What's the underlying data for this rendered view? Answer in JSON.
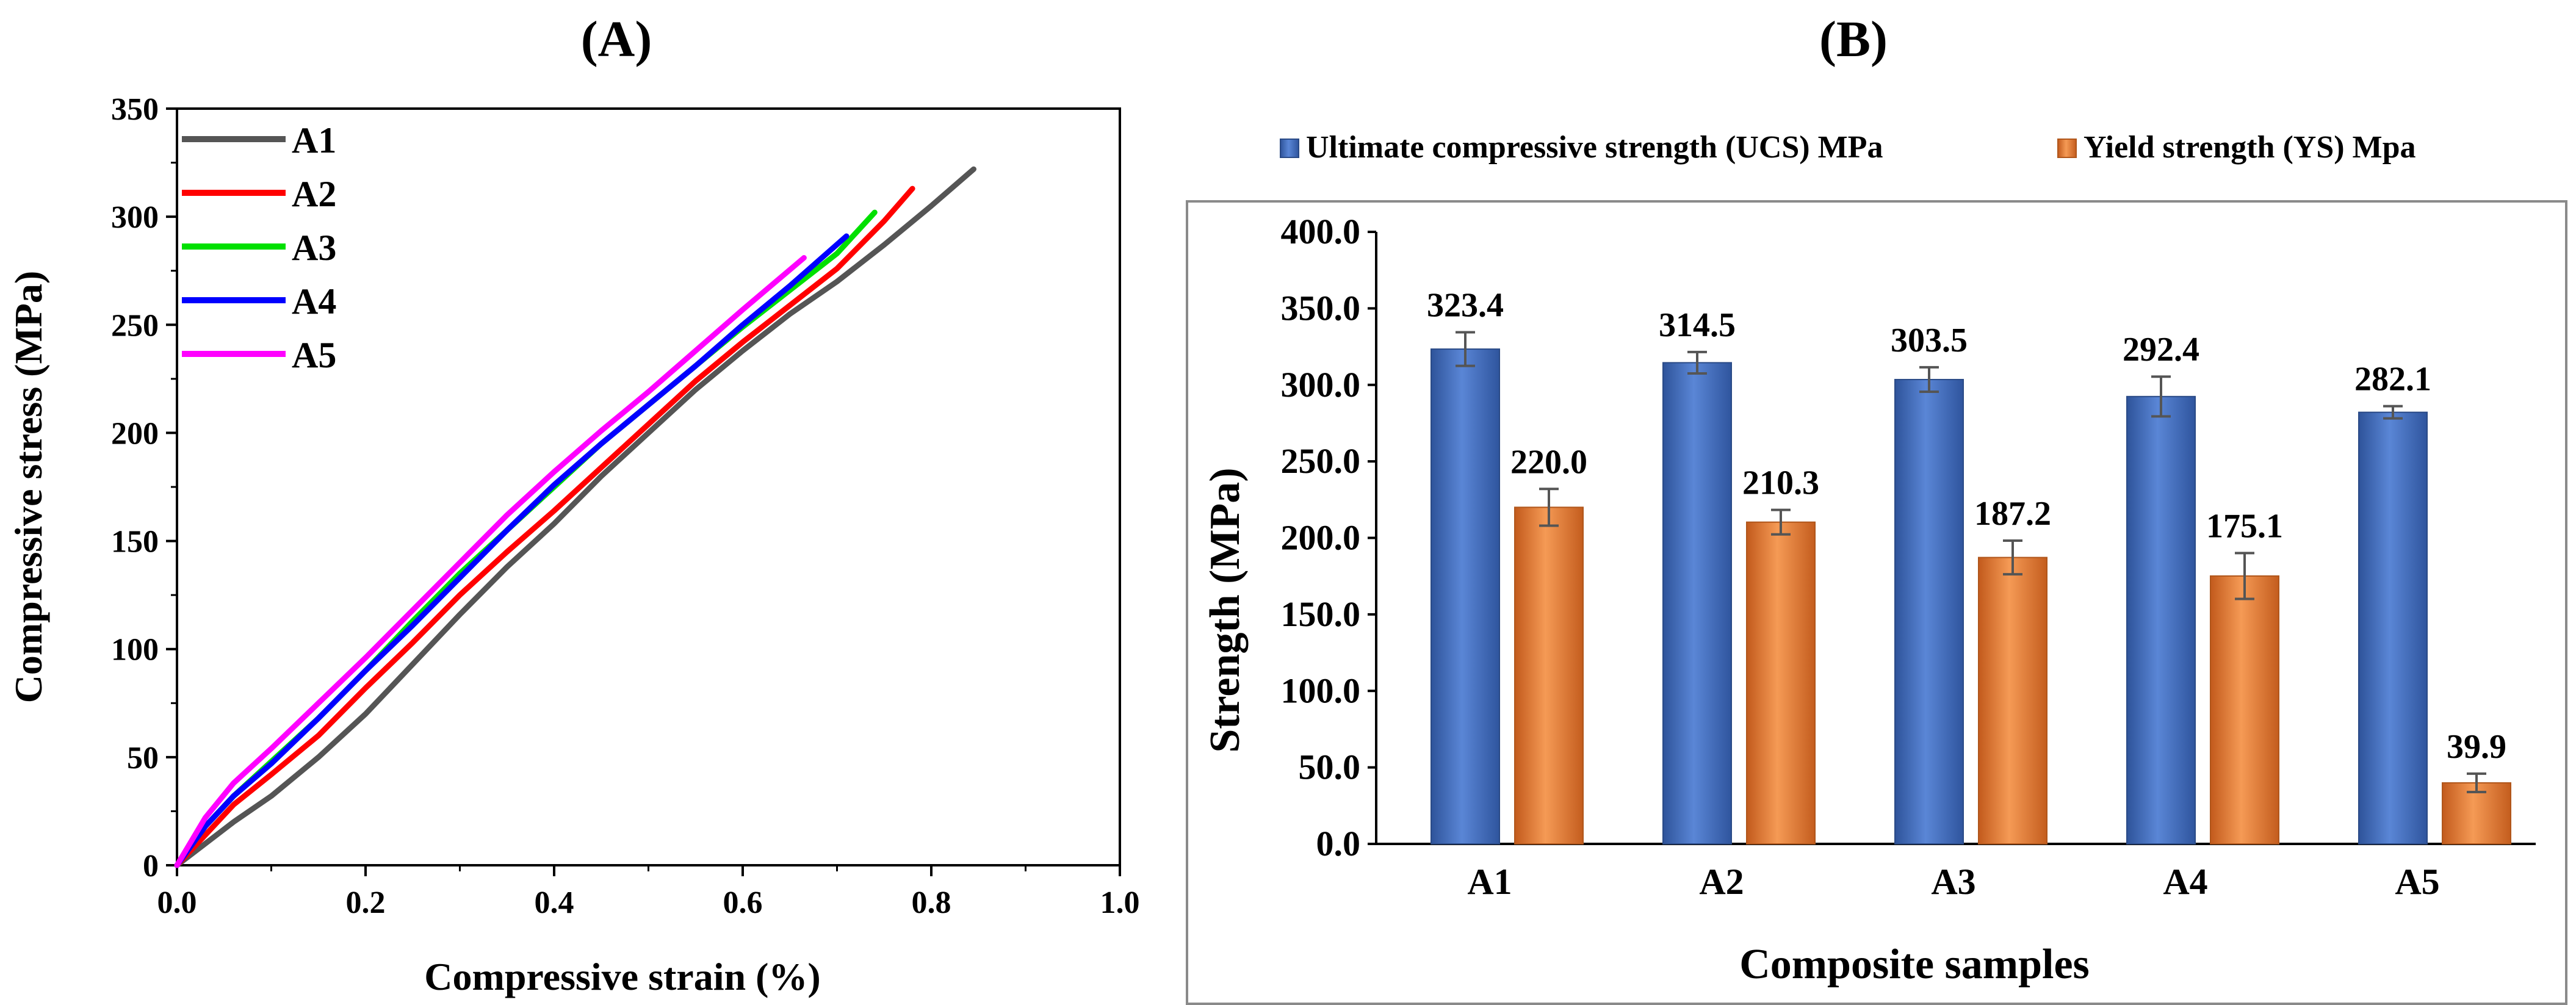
{
  "panels": {
    "a": {
      "label": "(A)"
    },
    "b": {
      "label": "(B)"
    }
  },
  "chart_data": [
    {
      "panel": "(A)",
      "type": "line",
      "title": "",
      "xlabel": "Compressive strain (%)",
      "ylabel": "Compressive stress (MPa)",
      "xlim": [
        0,
        1.0
      ],
      "ylim": [
        0,
        350
      ],
      "xticks": [
        "0.0",
        "0.2",
        "0.4",
        "0.6",
        "0.8",
        "1.0"
      ],
      "yticks": [
        "0",
        "50",
        "100",
        "150",
        "200",
        "250",
        "300",
        "350"
      ],
      "legend_position": "top-left",
      "series": [
        {
          "name": "A1",
          "color": "#555555",
          "x": [
            0,
            0.03,
            0.06,
            0.1,
            0.15,
            0.2,
            0.25,
            0.3,
            0.35,
            0.4,
            0.45,
            0.5,
            0.55,
            0.6,
            0.65,
            0.7,
            0.75,
            0.8,
            0.845
          ],
          "y": [
            0,
            10,
            20,
            32,
            50,
            70,
            93,
            116,
            138,
            158,
            180,
            200,
            220,
            238,
            255,
            270,
            287,
            305,
            322
          ]
        },
        {
          "name": "A2",
          "color": "#ff0000",
          "x": [
            0,
            0.03,
            0.06,
            0.1,
            0.15,
            0.2,
            0.25,
            0.3,
            0.35,
            0.4,
            0.45,
            0.5,
            0.55,
            0.6,
            0.65,
            0.7,
            0.75,
            0.78
          ],
          "y": [
            0,
            14,
            28,
            42,
            60,
            82,
            103,
            125,
            145,
            164,
            184,
            204,
            224,
            242,
            259,
            276,
            298,
            313
          ]
        },
        {
          "name": "A3",
          "color": "#00e000",
          "x": [
            0,
            0.03,
            0.06,
            0.1,
            0.15,
            0.2,
            0.25,
            0.3,
            0.35,
            0.4,
            0.45,
            0.5,
            0.55,
            0.6,
            0.65,
            0.7,
            0.74
          ],
          "y": [
            0,
            18,
            32,
            48,
            68,
            90,
            113,
            135,
            155,
            175,
            195,
            213,
            231,
            249,
            266,
            283,
            302
          ]
        },
        {
          "name": "A4",
          "color": "#0000ff",
          "x": [
            0,
            0.03,
            0.06,
            0.1,
            0.15,
            0.2,
            0.25,
            0.3,
            0.35,
            0.4,
            0.45,
            0.5,
            0.55,
            0.6,
            0.65,
            0.71
          ],
          "y": [
            0,
            18,
            32,
            47,
            68,
            90,
            111,
            133,
            155,
            176,
            195,
            213,
            231,
            250,
            268,
            291
          ]
        },
        {
          "name": "A5",
          "color": "#ff00ff",
          "x": [
            0,
            0.03,
            0.06,
            0.1,
            0.15,
            0.2,
            0.25,
            0.3,
            0.35,
            0.4,
            0.45,
            0.5,
            0.55,
            0.6,
            0.665
          ],
          "y": [
            0,
            22,
            38,
            54,
            75,
            96,
            118,
            140,
            162,
            182,
            201,
            219,
            238,
            257,
            281
          ]
        }
      ]
    },
    {
      "panel": "(B)",
      "type": "bar",
      "title": "",
      "xlabel": "Composite samples",
      "ylabel": "Strength (MPa)",
      "ylim": [
        0,
        400
      ],
      "yticks": [
        "0.0",
        "50.0",
        "100.0",
        "150.0",
        "200.0",
        "250.0",
        "300.0",
        "350.0",
        "400.0"
      ],
      "categories": [
        "A1",
        "A2",
        "A3",
        "A4",
        "A5"
      ],
      "legend_position": "top",
      "series": [
        {
          "name": "Ultimate compressive strength (UCS) MPa",
          "color": "#4472c4",
          "values": [
            323.4,
            314.5,
            303.5,
            292.4,
            282.1
          ],
          "labels": [
            "323.4",
            "314.5",
            "303.5",
            "292.4",
            "282.1"
          ],
          "errors": [
            11,
            7,
            8,
            13,
            4
          ]
        },
        {
          "name": "Yield strength (YS) Mpa",
          "color": "#ed7d31",
          "values": [
            220.0,
            210.3,
            187.2,
            175.1,
            39.9
          ],
          "labels": [
            "220.0",
            "210.3",
            "187.2",
            "175.1",
            "39.9"
          ],
          "errors": [
            12,
            8,
            11,
            15,
            6
          ]
        }
      ]
    }
  ]
}
